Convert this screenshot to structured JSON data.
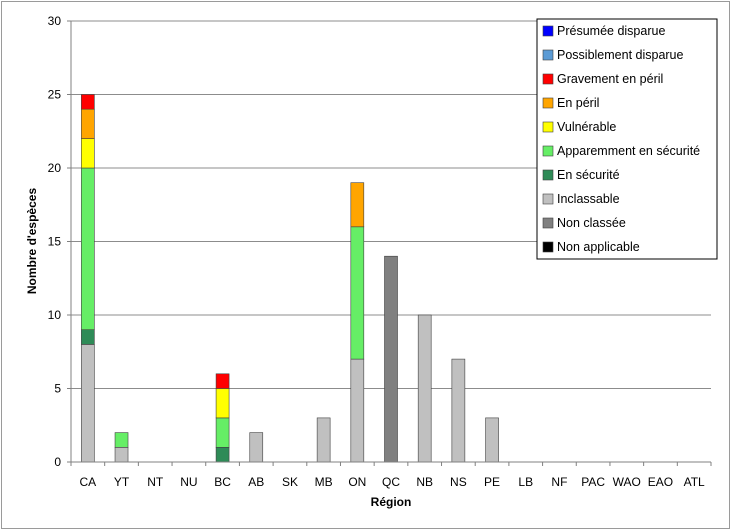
{
  "chart_data": {
    "type": "bar",
    "stacked": true,
    "title": "",
    "xlabel": "Région",
    "ylabel": "Nombre d'espèces",
    "ylim": [
      0,
      30
    ],
    "ytick_step": 5,
    "grid": true,
    "legend_position": "top-right",
    "categories": [
      "CA",
      "YT",
      "NT",
      "NU",
      "BC",
      "AB",
      "SK",
      "MB",
      "ON",
      "QC",
      "NB",
      "NS",
      "PE",
      "LB",
      "NF",
      "PAC",
      "WAO",
      "EAO",
      "ATL"
    ],
    "stack_order": [
      "Inclassable",
      "Non classée",
      "En sécurité",
      "Apparemment en sécurité",
      "Vulnérable",
      "En péril",
      "Gravement en péril",
      "Possiblement disparue",
      "Présumée disparue",
      "Non applicable"
    ],
    "series": [
      {
        "name": "Présumée disparue",
        "color": "#0000ff",
        "values": [
          0,
          0,
          0,
          0,
          0,
          0,
          0,
          0,
          0,
          0,
          0,
          0,
          0,
          0,
          0,
          0,
          0,
          0,
          0
        ]
      },
      {
        "name": "Possiblement disparue",
        "color": "#5b9bd5",
        "values": [
          0,
          0,
          0,
          0,
          0,
          0,
          0,
          0,
          0,
          0,
          0,
          0,
          0,
          0,
          0,
          0,
          0,
          0,
          0
        ]
      },
      {
        "name": "Gravement en péril",
        "color": "#ff0000",
        "values": [
          1,
          0,
          0,
          0,
          1,
          0,
          0,
          0,
          0,
          0,
          0,
          0,
          0,
          0,
          0,
          0,
          0,
          0,
          0
        ]
      },
      {
        "name": "En péril",
        "color": "#ffa500",
        "values": [
          2,
          0,
          0,
          0,
          0,
          0,
          0,
          0,
          3,
          0,
          0,
          0,
          0,
          0,
          0,
          0,
          0,
          0,
          0
        ]
      },
      {
        "name": "Vulnérable",
        "color": "#ffff00",
        "values": [
          2,
          0,
          0,
          0,
          2,
          0,
          0,
          0,
          0,
          0,
          0,
          0,
          0,
          0,
          0,
          0,
          0,
          0,
          0
        ]
      },
      {
        "name": "Apparemment en sécurité",
        "color": "#66ee66",
        "values": [
          11,
          1,
          0,
          0,
          2,
          0,
          0,
          0,
          9,
          0,
          0,
          0,
          0,
          0,
          0,
          0,
          0,
          0,
          0
        ]
      },
      {
        "name": "En sécurité",
        "color": "#2e8b57",
        "values": [
          1,
          0,
          0,
          0,
          1,
          0,
          0,
          0,
          0,
          0,
          0,
          0,
          0,
          0,
          0,
          0,
          0,
          0,
          0
        ]
      },
      {
        "name": "Inclassable",
        "color": "#c0c0c0",
        "values": [
          8,
          1,
          0,
          0,
          0,
          2,
          0,
          3,
          7,
          0,
          10,
          7,
          3,
          0,
          0,
          0,
          0,
          0,
          0
        ]
      },
      {
        "name": "Non classée",
        "color": "#808080",
        "values": [
          0,
          0,
          0,
          0,
          0,
          0,
          0,
          0,
          0,
          14,
          0,
          0,
          0,
          0,
          0,
          0,
          0,
          0,
          0
        ]
      },
      {
        "name": "Non applicable",
        "color": "#000000",
        "values": [
          0,
          0,
          0,
          0,
          0,
          0,
          0,
          0,
          0,
          0,
          0,
          0,
          0,
          0,
          0,
          0,
          0,
          0,
          0
        ]
      }
    ]
  }
}
